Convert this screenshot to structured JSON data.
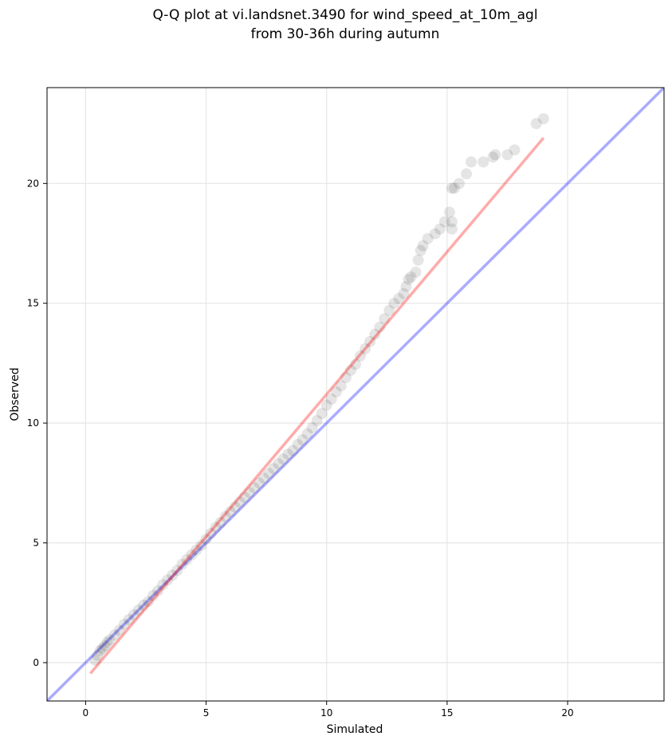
{
  "chart_data": {
    "type": "scatter",
    "title_lines": [
      "Q-Q plot at vi.landsnet.3490 for wind_speed_at_10m_agl",
      "from 30-36h during autumn"
    ],
    "xlabel": "Simulated",
    "ylabel": "Observed",
    "xlim": [
      -1.6,
      24.0
    ],
    "ylim": [
      -1.6,
      24.0
    ],
    "xticks": [
      0,
      5,
      10,
      15,
      20
    ],
    "yticks": [
      0,
      5,
      10,
      15,
      20
    ],
    "xtick_labels": [
      "0",
      "5",
      "10",
      "15",
      "20"
    ],
    "ytick_labels": [
      "0",
      "5",
      "10",
      "15",
      "20"
    ],
    "grid": true,
    "legend": "none",
    "colors": {
      "points": "#000000",
      "fit_line": "#ff0000",
      "identity_line": "#0000ff",
      "grid": "#e6e6e6"
    },
    "series": [
      {
        "kind": "scatter",
        "x": [
          0.4,
          0.5,
          0.6,
          0.7,
          0.8,
          0.9,
          1.0,
          1.2,
          1.4,
          1.6,
          1.8,
          2.0,
          2.2,
          2.4,
          2.6,
          2.8,
          3.0,
          3.2,
          3.4,
          3.6,
          3.8,
          4.0,
          4.2,
          4.4,
          4.6,
          4.8,
          5.0,
          5.2,
          5.4,
          5.6,
          5.8,
          6.0,
          6.2,
          6.4,
          6.6,
          6.8,
          7.0,
          7.2,
          7.4,
          7.6,
          7.8,
          8.0,
          8.2,
          8.4,
          8.6,
          8.8,
          9.0,
          9.2,
          9.4,
          9.6,
          9.8,
          10.0,
          10.2,
          10.4,
          10.6,
          10.8,
          11.0,
          11.2,
          11.4,
          11.6,
          11.8,
          12.0,
          12.2,
          12.4,
          12.6,
          12.8,
          13.0,
          13.2,
          13.3,
          13.4,
          13.5,
          13.7,
          13.8,
          13.9,
          14.0,
          14.2,
          14.5,
          14.7,
          14.9,
          15.1,
          15.2,
          15.2,
          15.2,
          15.3,
          15.5,
          15.8,
          16.0,
          16.5,
          16.9,
          17.0,
          17.5,
          17.8,
          18.7,
          19.0
        ],
        "y": [
          0.1,
          0.3,
          0.5,
          0.6,
          0.7,
          0.85,
          0.95,
          1.15,
          1.35,
          1.6,
          1.8,
          2.0,
          2.2,
          2.4,
          2.55,
          2.8,
          3.0,
          3.25,
          3.45,
          3.65,
          3.85,
          4.1,
          4.3,
          4.5,
          4.7,
          4.9,
          5.15,
          5.4,
          5.65,
          5.85,
          6.1,
          6.3,
          6.5,
          6.7,
          6.9,
          7.1,
          7.3,
          7.5,
          7.7,
          7.9,
          8.1,
          8.3,
          8.5,
          8.7,
          8.85,
          9.1,
          9.3,
          9.55,
          9.8,
          10.1,
          10.4,
          10.75,
          11.0,
          11.3,
          11.55,
          11.9,
          12.2,
          12.45,
          12.8,
          13.1,
          13.4,
          13.7,
          14.0,
          14.35,
          14.7,
          15.0,
          15.2,
          15.4,
          15.7,
          16.0,
          16.1,
          16.3,
          16.8,
          17.2,
          17.4,
          17.7,
          17.9,
          18.1,
          18.4,
          18.8,
          19.8,
          18.1,
          18.4,
          19.8,
          20.0,
          20.4,
          20.9,
          20.9,
          21.1,
          21.2,
          21.2,
          21.4,
          22.5,
          22.7
        ]
      },
      {
        "kind": "line",
        "name": "",
        "x": [
          0.2,
          19.0
        ],
        "y": [
          -0.45,
          21.9
        ]
      },
      {
        "kind": "line",
        "name": "",
        "x": [
          -1.6,
          24.0
        ],
        "y": [
          -1.6,
          24.0
        ]
      }
    ]
  }
}
